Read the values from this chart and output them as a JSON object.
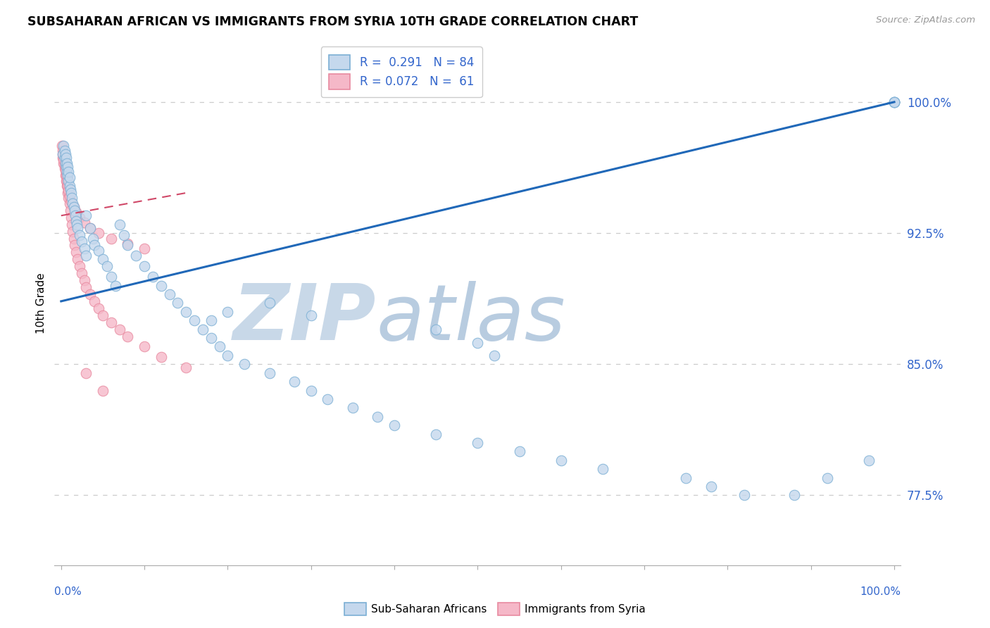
{
  "title": "SUBSAHARAN AFRICAN VS IMMIGRANTS FROM SYRIA 10TH GRADE CORRELATION CHART",
  "source": "Source: ZipAtlas.com",
  "ylabel": "10th Grade",
  "ytick_values": [
    0.775,
    0.85,
    0.925,
    1.0
  ],
  "legend_blue_label": "Sub-Saharan Africans",
  "legend_pink_label": "Immigrants from Syria",
  "R_blue": 0.291,
  "N_blue": 84,
  "R_pink": 0.072,
  "N_pink": 61,
  "blue_fill": "#c5d8ed",
  "pink_fill": "#f5b8c8",
  "blue_edge": "#7bafd4",
  "pink_edge": "#e88aa0",
  "blue_line": "#2068b8",
  "pink_line": "#d04868",
  "axis_label_color": "#3366cc",
  "grid_color": "#cccccc",
  "watermark_zip_color": "#c8d8e8",
  "watermark_atlas_color": "#b8cce0",
  "ylim_min": 0.735,
  "ylim_max": 1.035,
  "blue_scatter_x": [
    0.002,
    0.003,
    0.004,
    0.004,
    0.005,
    0.005,
    0.006,
    0.006,
    0.007,
    0.007,
    0.008,
    0.008,
    0.009,
    0.009,
    0.01,
    0.01,
    0.011,
    0.012,
    0.013,
    0.014,
    0.015,
    0.016,
    0.017,
    0.018,
    0.019,
    0.02,
    0.022,
    0.025,
    0.028,
    0.03,
    0.03,
    0.035,
    0.038,
    0.04,
    0.045,
    0.05,
    0.055,
    0.06,
    0.065,
    0.07,
    0.075,
    0.08,
    0.09,
    0.1,
    0.11,
    0.12,
    0.13,
    0.14,
    0.15,
    0.16,
    0.17,
    0.18,
    0.19,
    0.2,
    0.22,
    0.25,
    0.28,
    0.3,
    0.32,
    0.35,
    0.38,
    0.4,
    0.45,
    0.5,
    0.55,
    0.6,
    0.65,
    0.75,
    0.78,
    0.82,
    0.88,
    0.92,
    0.97,
    1.0,
    1.0,
    1.0,
    1.0,
    0.5,
    0.52,
    0.45,
    0.3,
    0.25,
    0.2,
    0.18
  ],
  "blue_scatter_y": [
    0.97,
    0.975,
    0.968,
    0.972,
    0.965,
    0.97,
    0.963,
    0.968,
    0.96,
    0.965,
    0.958,
    0.963,
    0.955,
    0.96,
    0.952,
    0.957,
    0.95,
    0.948,
    0.945,
    0.942,
    0.94,
    0.938,
    0.935,
    0.932,
    0.93,
    0.928,
    0.924,
    0.92,
    0.916,
    0.912,
    0.935,
    0.928,
    0.922,
    0.918,
    0.915,
    0.91,
    0.906,
    0.9,
    0.895,
    0.93,
    0.924,
    0.918,
    0.912,
    0.906,
    0.9,
    0.895,
    0.89,
    0.885,
    0.88,
    0.875,
    0.87,
    0.865,
    0.86,
    0.855,
    0.85,
    0.845,
    0.84,
    0.835,
    0.83,
    0.825,
    0.82,
    0.815,
    0.81,
    0.805,
    0.8,
    0.795,
    0.79,
    0.785,
    0.78,
    0.775,
    0.775,
    0.785,
    0.795,
    1.0,
    1.0,
    1.0,
    1.0,
    0.862,
    0.855,
    0.87,
    0.878,
    0.885,
    0.88,
    0.875
  ],
  "pink_scatter_x": [
    0.001,
    0.002,
    0.002,
    0.003,
    0.003,
    0.004,
    0.004,
    0.005,
    0.005,
    0.006,
    0.006,
    0.007,
    0.007,
    0.008,
    0.008,
    0.009,
    0.009,
    0.01,
    0.011,
    0.012,
    0.013,
    0.014,
    0.015,
    0.016,
    0.018,
    0.02,
    0.022,
    0.025,
    0.028,
    0.03,
    0.035,
    0.04,
    0.045,
    0.05,
    0.06,
    0.07,
    0.08,
    0.1,
    0.12,
    0.15,
    0.002,
    0.003,
    0.004,
    0.005,
    0.006,
    0.007,
    0.008,
    0.009,
    0.01,
    0.012,
    0.015,
    0.018,
    0.022,
    0.028,
    0.035,
    0.045,
    0.06,
    0.08,
    0.1,
    0.03,
    0.05
  ],
  "pink_scatter_y": [
    0.975,
    0.972,
    0.968,
    0.965,
    0.97,
    0.962,
    0.967,
    0.958,
    0.963,
    0.955,
    0.96,
    0.952,
    0.957,
    0.948,
    0.953,
    0.945,
    0.95,
    0.942,
    0.938,
    0.934,
    0.93,
    0.926,
    0.922,
    0.918,
    0.914,
    0.91,
    0.906,
    0.902,
    0.898,
    0.894,
    0.89,
    0.886,
    0.882,
    0.878,
    0.874,
    0.87,
    0.866,
    0.86,
    0.854,
    0.848,
    0.97,
    0.967,
    0.964,
    0.961,
    0.958,
    0.955,
    0.952,
    0.949,
    0.946,
    0.943,
    0.94,
    0.937,
    0.934,
    0.931,
    0.928,
    0.925,
    0.922,
    0.919,
    0.916,
    0.845,
    0.835
  ]
}
